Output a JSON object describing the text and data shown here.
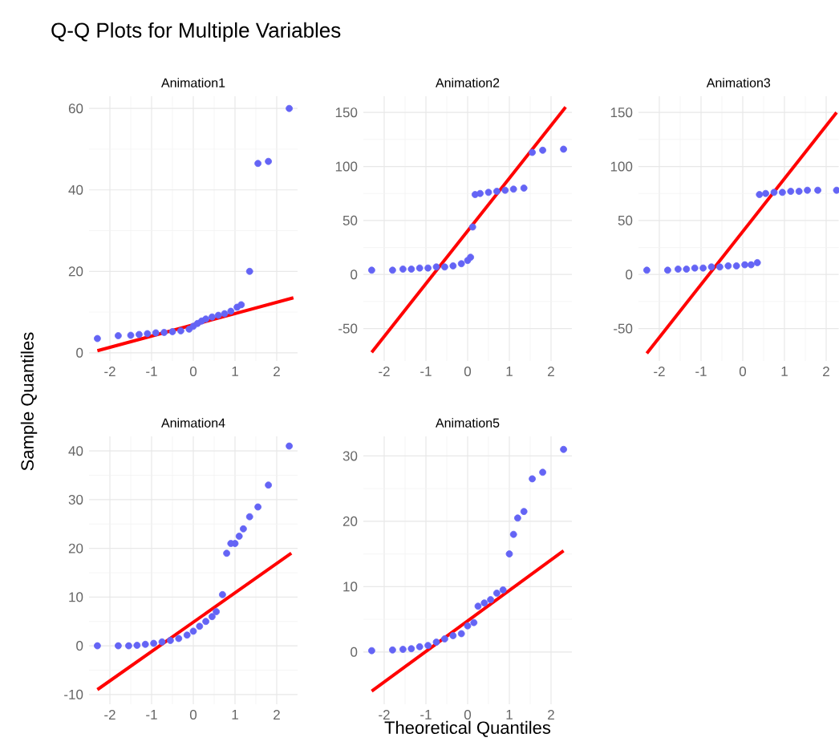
{
  "chart_data": [
    {
      "type": "scatter",
      "marker": "circle",
      "title": "Animation1",
      "annotations": [
        "Q-Q Plots for Multiple Variables"
      ],
      "grid": true,
      "xlim": [
        -2.5,
        2.5
      ],
      "ylim": [
        -2,
        63
      ],
      "xticks": [
        -2,
        -1,
        0,
        1,
        2
      ],
      "yticks": [
        0,
        20,
        40,
        60
      ],
      "series": [
        {
          "color": "#6464f5",
          "x": [
            -2.3,
            -1.8,
            -1.5,
            -1.3,
            -1.1,
            -0.9,
            -0.7,
            -0.5,
            -0.3,
            -0.1,
            0.0,
            0.1,
            0.2,
            0.3,
            0.45,
            0.6,
            0.75,
            0.9,
            1.05,
            1.15,
            1.35,
            1.55,
            1.8,
            2.3
          ],
          "values": [
            3.5,
            4.2,
            4.3,
            4.5,
            4.7,
            4.9,
            5.0,
            5.2,
            5.4,
            5.8,
            6.5,
            7.2,
            7.8,
            8.3,
            8.8,
            9.2,
            9.6,
            10.2,
            11.2,
            11.8,
            20,
            46.5,
            47,
            60
          ]
        },
        {
          "type": "line",
          "marker": "none",
          "color": "#ff0000",
          "x": [
            -2.3,
            2.4
          ],
          "values": [
            0.5,
            13.5
          ]
        }
      ]
    },
    {
      "type": "scatter",
      "marker": "circle",
      "title": "Animation2",
      "grid": true,
      "xlim": [
        -2.5,
        2.5
      ],
      "ylim": [
        -80,
        165
      ],
      "xticks": [
        -2,
        -1,
        0,
        1,
        2
      ],
      "yticks": [
        -50,
        0,
        50,
        100,
        150
      ],
      "series": [
        {
          "color": "#6464f5",
          "x": [
            -2.3,
            -1.8,
            -1.55,
            -1.35,
            -1.15,
            -0.95,
            -0.75,
            -0.55,
            -0.35,
            -0.15,
            0.0,
            0.07,
            0.12,
            0.18,
            0.3,
            0.5,
            0.7,
            0.9,
            1.1,
            1.35,
            1.55,
            1.8,
            2.3
          ],
          "values": [
            4,
            4,
            5,
            5,
            6,
            6,
            7,
            7,
            8,
            10,
            13,
            16,
            44,
            74,
            75,
            76,
            77,
            78,
            79,
            80,
            113,
            115,
            116
          ]
        },
        {
          "type": "line",
          "marker": "none",
          "color": "#ff0000",
          "x": [
            -2.3,
            2.35
          ],
          "values": [
            -72,
            155
          ]
        }
      ]
    },
    {
      "type": "scatter",
      "marker": "circle",
      "title": "Animation3",
      "grid": true,
      "xlim": [
        -2.5,
        2.3
      ],
      "ylim": [
        -80,
        165
      ],
      "xticks": [
        -2,
        -1,
        0,
        1,
        2
      ],
      "yticks": [
        -50,
        0,
        50,
        100,
        150
      ],
      "series": [
        {
          "color": "#6464f5",
          "x": [
            -2.3,
            -1.8,
            -1.55,
            -1.35,
            -1.15,
            -0.95,
            -0.75,
            -0.55,
            -0.35,
            -0.15,
            0.05,
            0.2,
            0.35,
            0.4,
            0.55,
            0.75,
            0.95,
            1.15,
            1.35,
            1.55,
            1.8,
            2.25
          ],
          "values": [
            4,
            4,
            5,
            5,
            6,
            6,
            7,
            7,
            8,
            8,
            9,
            9,
            11,
            74,
            75,
            76,
            76,
            77,
            77,
            78,
            78,
            78
          ]
        },
        {
          "type": "line",
          "marker": "none",
          "color": "#ff0000",
          "x": [
            -2.3,
            2.25
          ],
          "values": [
            -73,
            150
          ]
        }
      ]
    },
    {
      "type": "scatter",
      "marker": "circle",
      "title": "Animation4",
      "ylabel": "Sample Quantiles",
      "grid": true,
      "xlim": [
        -2.5,
        2.5
      ],
      "ylim": [
        -12,
        43
      ],
      "xticks": [
        -2,
        -1,
        0,
        1,
        2
      ],
      "yticks": [
        -10,
        0,
        10,
        20,
        30,
        40
      ],
      "series": [
        {
          "color": "#6464f5",
          "x": [
            -2.3,
            -1.8,
            -1.55,
            -1.35,
            -1.15,
            -0.95,
            -0.75,
            -0.55,
            -0.35,
            -0.15,
            0.0,
            0.15,
            0.3,
            0.45,
            0.55,
            0.7,
            0.8,
            0.9,
            1.0,
            1.1,
            1.2,
            1.35,
            1.55,
            1.8,
            2.3
          ],
          "values": [
            0,
            0,
            0,
            0.1,
            0.3,
            0.5,
            0.8,
            1.1,
            1.5,
            2.2,
            3,
            4,
            5,
            6,
            7,
            10.5,
            19,
            21,
            21,
            22.5,
            24,
            26.5,
            28.5,
            33,
            41
          ]
        },
        {
          "type": "line",
          "marker": "none",
          "color": "#ff0000",
          "x": [
            -2.3,
            2.35
          ],
          "values": [
            -9,
            19
          ]
        }
      ]
    },
    {
      "type": "scatter",
      "marker": "circle",
      "title": "Animation5",
      "xlabel": "Theoretical Quantiles",
      "grid": true,
      "xlim": [
        -2.5,
        2.5
      ],
      "ylim": [
        -8,
        33
      ],
      "xticks": [
        -2,
        -1,
        0,
        1,
        2
      ],
      "yticks": [
        0,
        10,
        20,
        30
      ],
      "series": [
        {
          "color": "#6464f5",
          "x": [
            -2.3,
            -1.8,
            -1.55,
            -1.35,
            -1.15,
            -0.95,
            -0.75,
            -0.55,
            -0.35,
            -0.15,
            0.0,
            0.15,
            0.25,
            0.4,
            0.55,
            0.7,
            0.85,
            1.0,
            1.1,
            1.2,
            1.35,
            1.55,
            1.8,
            2.3
          ],
          "values": [
            0.2,
            0.3,
            0.4,
            0.5,
            0.8,
            1,
            1.5,
            2,
            2.5,
            2.8,
            4,
            4.5,
            7,
            7.5,
            8,
            9,
            9.5,
            15,
            18,
            20.5,
            21.5,
            26.5,
            27.5,
            31
          ]
        },
        {
          "type": "line",
          "marker": "none",
          "color": "#ff0000",
          "x": [
            -2.3,
            2.3
          ],
          "values": [
            -6,
            15.5
          ]
        }
      ]
    }
  ]
}
